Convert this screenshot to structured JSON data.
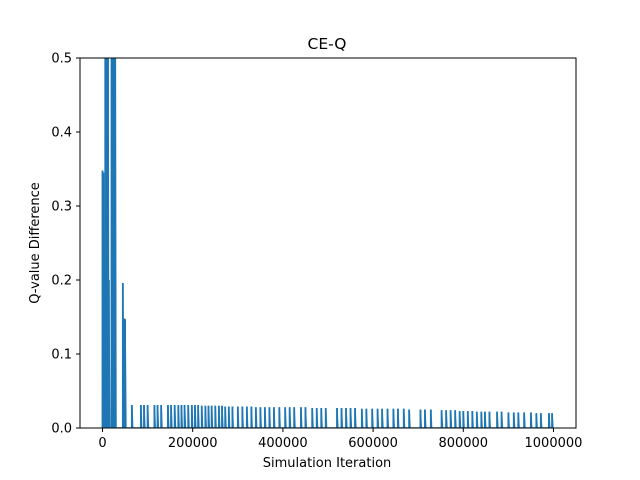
{
  "chart_data": {
    "type": "line",
    "title": "CE-Q",
    "xlabel": "Simulation Iteration",
    "ylabel": "Q-value Difference",
    "xlim": [
      -50000,
      1050000
    ],
    "ylim": [
      0,
      0.5
    ],
    "x_ticks": [
      0,
      200000,
      400000,
      600000,
      800000,
      1000000
    ],
    "x_tick_labels": [
      "0",
      "200000",
      "400000",
      "600000",
      "800000",
      "1000000"
    ],
    "y_ticks": [
      0.0,
      0.1,
      0.2,
      0.3,
      0.4,
      0.5
    ],
    "y_tick_labels": [
      "0.0",
      "0.1",
      "0.2",
      "0.3",
      "0.4",
      "0.5"
    ],
    "grid": false,
    "legend": "none",
    "series_color": "#1f77b4",
    "series": [
      {
        "spikes": [
          [
            0,
            0.348
          ],
          [
            2000,
            0.345
          ],
          [
            4000,
            0.08
          ],
          [
            6000,
            0.6
          ],
          [
            8000,
            0.55
          ],
          [
            10000,
            0.6
          ],
          [
            12000,
            0.6
          ],
          [
            14000,
            0.2
          ],
          [
            20000,
            0.6
          ],
          [
            22000,
            0.6
          ],
          [
            24000,
            0.6
          ],
          [
            26000,
            0.6
          ],
          [
            28000,
            0.6
          ],
          [
            45000,
            0.196
          ],
          [
            48000,
            0.148
          ],
          [
            50000,
            0.147
          ],
          [
            65000,
            0.031
          ],
          [
            85000,
            0.031
          ],
          [
            92000,
            0.031
          ],
          [
            100000,
            0.031
          ],
          [
            115000,
            0.031
          ],
          [
            122000,
            0.031
          ],
          [
            130000,
            0.031
          ],
          [
            145000,
            0.031
          ],
          [
            152000,
            0.031
          ],
          [
            160000,
            0.031
          ],
          [
            168000,
            0.031
          ],
          [
            175000,
            0.031
          ],
          [
            182000,
            0.031
          ],
          [
            190000,
            0.031
          ],
          [
            198000,
            0.031
          ],
          [
            205000,
            0.031
          ],
          [
            212000,
            0.031
          ],
          [
            220000,
            0.03
          ],
          [
            228000,
            0.03
          ],
          [
            235000,
            0.03
          ],
          [
            242000,
            0.03
          ],
          [
            250000,
            0.03
          ],
          [
            258000,
            0.03
          ],
          [
            265000,
            0.03
          ],
          [
            272000,
            0.029
          ],
          [
            280000,
            0.029
          ],
          [
            288000,
            0.029
          ],
          [
            300000,
            0.029
          ],
          [
            310000,
            0.029
          ],
          [
            320000,
            0.029
          ],
          [
            330000,
            0.029
          ],
          [
            340000,
            0.028
          ],
          [
            350000,
            0.028
          ],
          [
            360000,
            0.028
          ],
          [
            370000,
            0.028
          ],
          [
            380000,
            0.028
          ],
          [
            392000,
            0.028
          ],
          [
            405000,
            0.028
          ],
          [
            415000,
            0.028
          ],
          [
            425000,
            0.028
          ],
          [
            440000,
            0.028
          ],
          [
            450000,
            0.028
          ],
          [
            465000,
            0.027
          ],
          [
            475000,
            0.027
          ],
          [
            485000,
            0.027
          ],
          [
            495000,
            0.027
          ],
          [
            520000,
            0.027
          ],
          [
            530000,
            0.027
          ],
          [
            540000,
            0.027
          ],
          [
            550000,
            0.027
          ],
          [
            560000,
            0.027
          ],
          [
            575000,
            0.026
          ],
          [
            585000,
            0.026
          ],
          [
            598000,
            0.026
          ],
          [
            610000,
            0.026
          ],
          [
            620000,
            0.026
          ],
          [
            632000,
            0.026
          ],
          [
            645000,
            0.026
          ],
          [
            655000,
            0.026
          ],
          [
            668000,
            0.026
          ],
          [
            680000,
            0.025
          ],
          [
            705000,
            0.025
          ],
          [
            715000,
            0.025
          ],
          [
            728000,
            0.025
          ],
          [
            752000,
            0.024
          ],
          [
            762000,
            0.024
          ],
          [
            772000,
            0.024
          ],
          [
            782000,
            0.024
          ],
          [
            792000,
            0.023
          ],
          [
            800000,
            0.023
          ],
          [
            810000,
            0.023
          ],
          [
            820000,
            0.023
          ],
          [
            830000,
            0.022
          ],
          [
            840000,
            0.022
          ],
          [
            848000,
            0.022
          ],
          [
            858000,
            0.022
          ],
          [
            875000,
            0.022
          ],
          [
            885000,
            0.022
          ],
          [
            900000,
            0.021
          ],
          [
            912000,
            0.021
          ],
          [
            922000,
            0.021
          ],
          [
            935000,
            0.021
          ],
          [
            950000,
            0.021
          ],
          [
            962000,
            0.02
          ],
          [
            972000,
            0.02
          ],
          [
            990000,
            0.02
          ],
          [
            997000,
            0.02
          ]
        ]
      }
    ]
  }
}
